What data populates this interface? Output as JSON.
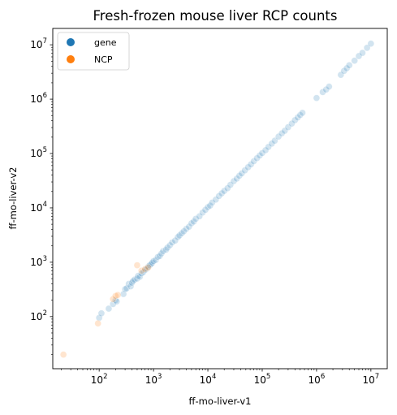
{
  "chart_data": {
    "type": "scatter",
    "title": "Fresh-frozen mouse liver RCP counts",
    "xlabel": "ff-mo-liver-v1",
    "ylabel": "ff-mo-liver-v2",
    "xscale": "log",
    "yscale": "log",
    "xlim": [
      14,
      20000000
    ],
    "ylim": [
      11,
      20000000
    ],
    "grid": false,
    "legend_position": "top-left",
    "x_ticks": [
      {
        "value": 100,
        "base": "10",
        "exp": "2"
      },
      {
        "value": 1000,
        "base": "10",
        "exp": "3"
      },
      {
        "value": 10000,
        "base": "10",
        "exp": "4"
      },
      {
        "value": 100000,
        "base": "10",
        "exp": "5"
      },
      {
        "value": 1000000,
        "base": "10",
        "exp": "6"
      },
      {
        "value": 10000000,
        "base": "10",
        "exp": "7"
      }
    ],
    "y_ticks": [
      {
        "value": 100,
        "base": "10",
        "exp": "2"
      },
      {
        "value": 1000,
        "base": "10",
        "exp": "3"
      },
      {
        "value": 10000,
        "base": "10",
        "exp": "4"
      },
      {
        "value": 100000,
        "base": "10",
        "exp": "5"
      },
      {
        "value": 1000000,
        "base": "10",
        "exp": "6"
      },
      {
        "value": 10000000,
        "base": "10",
        "exp": "7"
      }
    ],
    "series": [
      {
        "name": "gene",
        "color": "#1f77b4",
        "alpha": 0.2,
        "points": [
          [
            100,
            95
          ],
          [
            110,
            115
          ],
          [
            150,
            140
          ],
          [
            180,
            170
          ],
          [
            200,
            200
          ],
          [
            210,
            190
          ],
          [
            280,
            260
          ],
          [
            300,
            320
          ],
          [
            320,
            330
          ],
          [
            350,
            400
          ],
          [
            380,
            360
          ],
          [
            400,
            420
          ],
          [
            420,
            450
          ],
          [
            450,
            480
          ],
          [
            500,
            500
          ],
          [
            520,
            560
          ],
          [
            560,
            540
          ],
          [
            600,
            620
          ],
          [
            650,
            660
          ],
          [
            700,
            720
          ],
          [
            750,
            760
          ],
          [
            800,
            830
          ],
          [
            850,
            880
          ],
          [
            900,
            920
          ],
          [
            950,
            980
          ],
          [
            1000,
            1050
          ],
          [
            1100,
            1100
          ],
          [
            1200,
            1250
          ],
          [
            1300,
            1300
          ],
          [
            1400,
            1450
          ],
          [
            1500,
            1600
          ],
          [
            1700,
            1700
          ],
          [
            1800,
            1850
          ],
          [
            2000,
            2050
          ],
          [
            2200,
            2300
          ],
          [
            2500,
            2500
          ],
          [
            2800,
            2900
          ],
          [
            3000,
            3100
          ],
          [
            3300,
            3400
          ],
          [
            3600,
            3700
          ],
          [
            4000,
            4100
          ],
          [
            4500,
            4500
          ],
          [
            5000,
            5200
          ],
          [
            5500,
            5600
          ],
          [
            6000,
            6300
          ],
          [
            7000,
            7000
          ],
          [
            8000,
            8200
          ],
          [
            9000,
            9200
          ],
          [
            10000,
            10300
          ],
          [
            11000,
            11000
          ],
          [
            12000,
            12500
          ],
          [
            14000,
            14200
          ],
          [
            16000,
            16500
          ],
          [
            18000,
            18500
          ],
          [
            20000,
            20500
          ],
          [
            23000,
            23000
          ],
          [
            26000,
            26500
          ],
          [
            30000,
            31000
          ],
          [
            34000,
            34500
          ],
          [
            38000,
            39000
          ],
          [
            42000,
            43000
          ],
          [
            48000,
            49000
          ],
          [
            55000,
            56000
          ],
          [
            62000,
            63000
          ],
          [
            70000,
            72000
          ],
          [
            80000,
            82000
          ],
          [
            90000,
            92000
          ],
          [
            100000,
            102000
          ],
          [
            115000,
            115000
          ],
          [
            130000,
            132000
          ],
          [
            150000,
            152000
          ],
          [
            170000,
            172000
          ],
          [
            200000,
            205000
          ],
          [
            230000,
            235000
          ],
          [
            260000,
            262000
          ],
          [
            300000,
            305000
          ],
          [
            350000,
            355000
          ],
          [
            400000,
            410000
          ],
          [
            450000,
            460000
          ],
          [
            500000,
            510000
          ],
          [
            550000,
            560000
          ],
          [
            1000000,
            1050000
          ],
          [
            1300000,
            1350000
          ],
          [
            1500000,
            1500000
          ],
          [
            1700000,
            1700000
          ],
          [
            2800000,
            2800000
          ],
          [
            3200000,
            3300000
          ],
          [
            3600000,
            3700000
          ],
          [
            4000000,
            4200000
          ],
          [
            5000000,
            5100000
          ],
          [
            6000000,
            6200000
          ],
          [
            7000000,
            7100000
          ],
          [
            8500000,
            8800000
          ],
          [
            10000000,
            10500000
          ]
        ]
      },
      {
        "name": "NCP",
        "color": "#ff7f0e",
        "alpha": 0.2,
        "points": [
          [
            22,
            20
          ],
          [
            95,
            75
          ],
          [
            180,
            210
          ],
          [
            200,
            240
          ],
          [
            220,
            250
          ],
          [
            500,
            880
          ],
          [
            600,
            700
          ],
          [
            700,
            750
          ],
          [
            800,
            800
          ]
        ]
      }
    ]
  }
}
